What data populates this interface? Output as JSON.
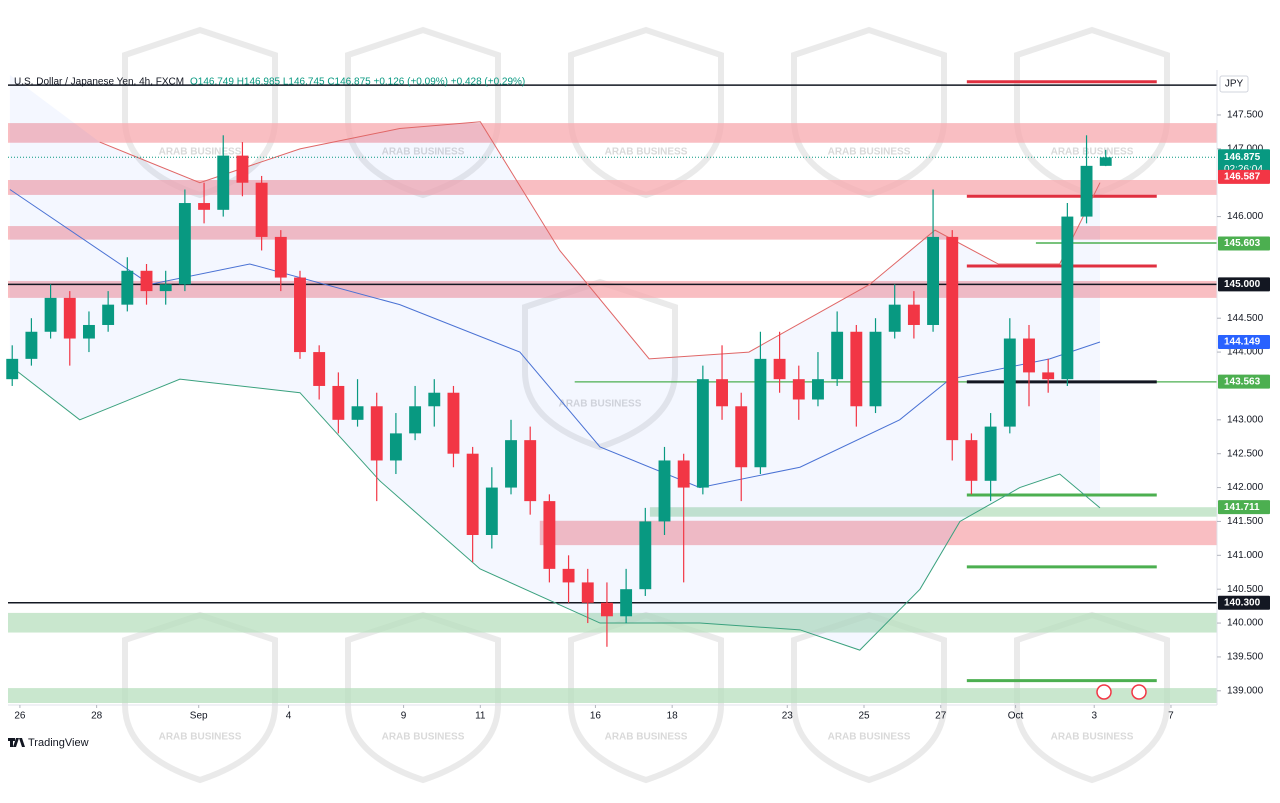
{
  "chart_data": {
    "type": "candlestick",
    "symbol": "U.S. Dollar / Japanese Yen, 4h, FXCM",
    "ohlc_text": "O146.749  H146.985  L146.745  C146.875  +0.126 (+0.09%)  +0.428 (+0.29%)",
    "currency": "JPY",
    "countdown": "02:26:04",
    "brand": "TradingView",
    "watermark": "ARAB BUSINESS",
    "up_color": "#089981",
    "down_color": "#f23645",
    "x": [
      -0.2,
      0.3,
      0.8,
      1.3,
      1.8,
      2.3,
      2.8,
      3.3,
      3.8,
      4.3,
      4.8,
      5.3,
      5.8,
      6.3,
      6.8,
      7.3,
      7.8,
      8.3,
      8.8,
      9.3,
      9.8,
      10.3,
      10.8,
      11.3,
      11.8,
      12.3,
      12.8,
      13.3,
      13.8,
      14.3,
      14.8,
      15.3,
      15.8,
      16.3,
      16.8,
      17.3,
      17.8,
      18.3,
      18.8,
      19.3,
      19.8,
      20.3,
      20.8,
      21.3,
      21.8,
      22.3,
      22.8,
      23.3,
      23.8,
      24.3,
      24.8,
      25.3,
      25.8,
      26.3,
      26.8,
      27.3,
      27.8,
      28.3
    ],
    "open": [
      143.6,
      143.9,
      144.3,
      144.8,
      144.2,
      144.4,
      144.7,
      145.2,
      144.9,
      145.0,
      146.2,
      146.1,
      146.9,
      146.5,
      145.7,
      145.1,
      144.0,
      143.5,
      143.0,
      143.2,
      142.4,
      142.8,
      143.2,
      143.4,
      142.5,
      141.3,
      142.0,
      142.7,
      141.8,
      140.8,
      140.6,
      140.3,
      140.1,
      140.5,
      141.5,
      142.4,
      142.0,
      143.6,
      143.2,
      142.3,
      143.9,
      143.6,
      143.3,
      143.6,
      144.3,
      143.2,
      144.3,
      144.7,
      144.4,
      145.7,
      142.7,
      142.1,
      142.9,
      144.2,
      143.7,
      143.6,
      146.0,
      146.749
    ],
    "high": [
      144.1,
      144.5,
      145.0,
      144.9,
      144.6,
      144.9,
      145.4,
      145.3,
      145.2,
      146.4,
      146.5,
      147.2,
      147.1,
      146.6,
      145.8,
      145.2,
      144.1,
      143.7,
      143.6,
      143.4,
      143.1,
      143.5,
      143.6,
      143.5,
      142.6,
      142.3,
      143.0,
      142.9,
      141.9,
      141.0,
      140.8,
      140.6,
      140.8,
      141.7,
      142.6,
      142.5,
      143.8,
      144.1,
      143.4,
      144.3,
      144.3,
      143.8,
      144.0,
      144.6,
      144.4,
      144.5,
      145.0,
      144.9,
      146.4,
      145.8,
      142.8,
      143.1,
      144.5,
      144.4,
      143.9,
      146.2,
      147.2,
      146.985
    ],
    "low": [
      143.5,
      143.8,
      144.2,
      143.8,
      144.0,
      144.3,
      144.6,
      144.7,
      144.7,
      144.9,
      145.9,
      146.0,
      146.3,
      145.5,
      144.9,
      143.9,
      143.3,
      142.8,
      142.9,
      141.8,
      142.2,
      142.7,
      142.9,
      142.3,
      140.9,
      141.1,
      141.9,
      141.6,
      140.6,
      140.3,
      140.0,
      139.65,
      140.0,
      140.4,
      141.3,
      140.6,
      141.9,
      143.0,
      141.8,
      142.2,
      143.4,
      143.0,
      143.2,
      143.5,
      142.9,
      143.1,
      144.2,
      144.2,
      144.3,
      142.4,
      141.9,
      141.8,
      142.8,
      143.2,
      143.4,
      143.5,
      145.9,
      146.745
    ],
    "close": [
      143.9,
      144.3,
      144.8,
      144.2,
      144.4,
      144.7,
      145.2,
      144.9,
      145.0,
      146.2,
      146.1,
      146.9,
      146.5,
      145.7,
      145.1,
      144.0,
      143.5,
      143.0,
      143.2,
      142.4,
      142.8,
      143.2,
      143.4,
      142.5,
      141.3,
      142.0,
      142.7,
      141.8,
      140.8,
      140.6,
      140.3,
      140.1,
      140.5,
      141.5,
      142.4,
      142.0,
      143.6,
      143.2,
      142.3,
      143.9,
      143.6,
      143.3,
      143.6,
      144.3,
      143.2,
      144.3,
      144.7,
      144.4,
      145.7,
      142.7,
      142.1,
      142.9,
      144.2,
      143.7,
      143.6,
      146.0,
      146.749,
      146.875
    ],
    "bands": [
      {
        "name": "upper",
        "color": "#e06666",
        "x": [
          2.08,
          4.69,
          7.3,
          9.9,
          12.0,
          14.07,
          16.4,
          19.0,
          22.15,
          23.85,
          25.5,
          27.1,
          28.15
        ],
        "values": [
          147.1,
          146.5,
          147.0,
          147.3,
          147.4,
          145.5,
          143.9,
          144.0,
          145.0,
          145.8,
          145.3,
          145.3,
          146.5
        ]
      },
      {
        "name": "middle",
        "color": "#4a72d4",
        "x": [
          -0.26,
          3.39,
          5.99,
          9.9,
          13.03,
          15.12,
          17.72,
          20.33,
          22.93,
          24.24,
          26.84,
          28.15
        ],
        "values": [
          146.4,
          145.0,
          145.3,
          144.7,
          144.0,
          142.6,
          142.0,
          142.3,
          143.0,
          143.6,
          143.9,
          144.149
        ]
      },
      {
        "name": "lower",
        "color": "#3aa17e",
        "x": [
          -0.26,
          1.56,
          4.17,
          7.3,
          9.38,
          11.99,
          15.12,
          17.72,
          20.33,
          21.89,
          23.46,
          24.5,
          26.06,
          27.1,
          28.15
        ],
        "values": [
          143.8,
          143.0,
          143.6,
          143.4,
          142.1,
          140.8,
          140.0,
          140.0,
          139.9,
          139.6,
          140.5,
          141.5,
          142.0,
          142.2,
          141.7
        ]
      }
    ],
    "zones": [
      {
        "from": 147.38,
        "to": 147.09,
        "x0": null,
        "color": "#f7a8ae"
      },
      {
        "from": 146.54,
        "to": 146.32,
        "x0": null,
        "color": "#f7a8ae"
      },
      {
        "from": 145.86,
        "to": 145.66,
        "x0": null,
        "color": "#f7a8ae"
      },
      {
        "from": 145.05,
        "to": 144.8,
        "x0": null,
        "color": "#f7a8ae"
      },
      {
        "from": 141.51,
        "to": 141.15,
        "x0": 13.55,
        "color": "#f7a8ae"
      },
      {
        "from": 141.71,
        "to": 141.57,
        "x0": 16.42,
        "color": "#b7dfbd"
      },
      {
        "from": 140.15,
        "to": 139.86,
        "x0": null,
        "color": "#b7dfbd"
      },
      {
        "from": 139.04,
        "to": 138.82,
        "x0": null,
        "color": "#b7dfbd"
      }
    ],
    "levels": [
      {
        "value": 147.94,
        "x0": null,
        "x1": null,
        "color": "#131722",
        "width": 1.5
      },
      {
        "value": 145.0,
        "x0": null,
        "x1": null,
        "color": "#131722",
        "width": 1.5
      },
      {
        "value": 140.3,
        "x0": null,
        "x1": null,
        "color": "#131722",
        "width": 1.5
      },
      {
        "value": 147.99,
        "x0": 24.68,
        "x1": 29.63,
        "color": "#e03040",
        "width": 3
      },
      {
        "value": 146.3,
        "x0": 24.68,
        "x1": 29.63,
        "color": "#e03040",
        "width": 3
      },
      {
        "value": 145.27,
        "x0": 24.68,
        "x1": 29.63,
        "color": "#e03040",
        "width": 3
      },
      {
        "value": 145.61,
        "x0": 26.48,
        "x1": null,
        "color": "#4caf50",
        "width": 1.5
      },
      {
        "value": 143.56,
        "x0": 14.46,
        "x1": null,
        "color": "#4caf50",
        "width": 1.2
      },
      {
        "value": 143.56,
        "x0": 24.68,
        "x1": 29.63,
        "color": "#131722",
        "width": 3
      },
      {
        "value": 141.89,
        "x0": 24.68,
        "x1": 29.63,
        "color": "#4caf50",
        "width": 3
      },
      {
        "value": 140.83,
        "x0": 24.68,
        "x1": 29.63,
        "color": "#4caf50",
        "width": 3
      },
      {
        "value": 139.15,
        "x0": 24.68,
        "x1": 29.63,
        "color": "#4caf50",
        "width": 3
      }
    ],
    "price_labels": [
      {
        "value": 146.875,
        "label": "146.875",
        "color": "#089981"
      },
      {
        "value": 146.587,
        "label": "146.587",
        "color": "#f23645"
      },
      {
        "value": 145.603,
        "label": "145.603",
        "color": "#4caf50"
      },
      {
        "value": 145.0,
        "label": "145.000",
        "color": "#131722"
      },
      {
        "value": 144.149,
        "label": "144.149",
        "color": "#2962ff"
      },
      {
        "value": 143.563,
        "label": "143.563",
        "color": "#4caf50"
      },
      {
        "value": 141.711,
        "label": "141.711",
        "color": "#4caf50"
      },
      {
        "value": 140.3,
        "label": "140.300",
        "color": "#131722"
      }
    ],
    "ylim": [
      138.82,
      148.09
    ],
    "yticks": [
      {
        "value": 147.5,
        "label": "147.500"
      },
      {
        "value": 147,
        "label": "147.000"
      },
      {
        "value": 146,
        "label": "146.000"
      },
      {
        "value": 144.5,
        "label": "144.500"
      },
      {
        "value": 144,
        "label": "144.000"
      },
      {
        "value": 143,
        "label": "143.000"
      },
      {
        "value": 142.5,
        "label": "142.500"
      },
      {
        "value": 142,
        "label": "142.000"
      },
      {
        "value": 141.5,
        "label": "141.500"
      },
      {
        "value": 141,
        "label": "141.000"
      },
      {
        "value": 140.5,
        "label": "140.500"
      },
      {
        "value": 140,
        "label": "140.000"
      },
      {
        "value": 139.5,
        "label": "139.500"
      },
      {
        "value": 139,
        "label": "139.000"
      }
    ],
    "xlim": [
      -0.31,
      31.2
    ],
    "xticks": [
      {
        "value": 0,
        "label": "26"
      },
      {
        "value": 2,
        "label": "28"
      },
      {
        "value": 4.66,
        "label": "Sep"
      },
      {
        "value": 7,
        "label": "4"
      },
      {
        "value": 10,
        "label": "9"
      },
      {
        "value": 12,
        "label": "11"
      },
      {
        "value": 15,
        "label": "16"
      },
      {
        "value": 17,
        "label": "18"
      },
      {
        "value": 20,
        "label": "23"
      },
      {
        "value": 22,
        "label": "25"
      },
      {
        "value": 24,
        "label": "27"
      },
      {
        "value": 25.95,
        "label": "Oct"
      },
      {
        "value": 28,
        "label": "3"
      },
      {
        "value": 30,
        "label": "7"
      }
    ]
  }
}
